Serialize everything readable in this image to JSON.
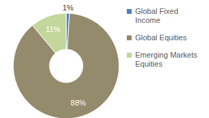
{
  "chart_data": {
    "type": "pie",
    "categories": [
      "Global Fixed Income",
      "Global Equities",
      "Emerging Markets Equities"
    ],
    "values": [
      1,
      88,
      11
    ],
    "value_labels": [
      "1%",
      "88%",
      "11%"
    ],
    "colors": [
      "#4f81bd",
      "#948a6c",
      "#c3d69b"
    ],
    "data_labels": true,
    "legend": "right"
  }
}
